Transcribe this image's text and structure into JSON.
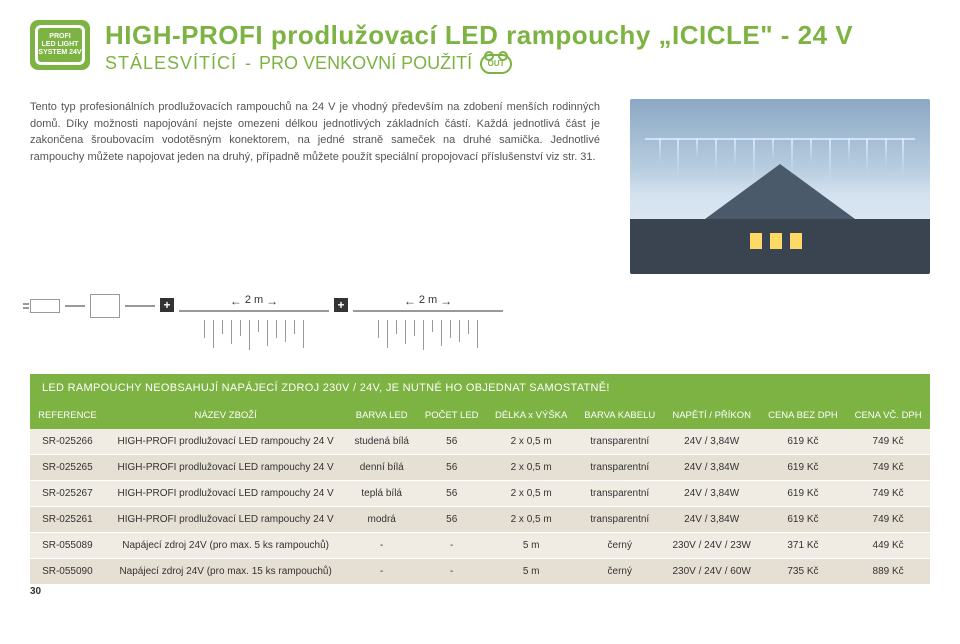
{
  "badge": {
    "line1": "PROFI",
    "line2": "LED LIGHT",
    "line3": "SYSTEM 24V"
  },
  "title": "HIGH-PROFI prodlužovací LED rampouchy „ICICLE\" - 24 V",
  "subtitle_light": "STÁLESVÍTÍCÍ",
  "subtitle_sep": " - ",
  "subtitle_heavy": "PRO VENKOVNÍ POUŽITÍ",
  "out_label": "OUT",
  "body_text": "Tento typ profesionálních prodlužovacích rampouchů na 24 V je vhodný především na zdobení menších rodinných domů. Díky možnosti napojování nejste omezeni délkou jednotlivých základních částí. Každá jednotlivá část je zakončena šroubovacím vodotěsným konektorem, na jedné straně sameček na druhé samička. Jednotlivé rampouchy můžete napojovat jeden na druhý, případně můžete použít speciální propojovací příslušenství viz str. 31.",
  "seg_label": "2 m",
  "notice": "LED RAMPOUCHY NEOBSAHUJÍ NAPÁJECÍ ZDROJ 230V / 24V, JE NUTNÉ HO OBJEDNAT SAMOSTATNĚ!",
  "columns": [
    "REFERENCE",
    "NÁZEV ZBOŽÍ",
    "BARVA LED",
    "POČET LED",
    "DÉLKA x VÝŠKA",
    "BARVA KABELU",
    "NAPĚTÍ / PŘÍKON",
    "CENA BEZ DPH",
    "CENA VČ. DPH"
  ],
  "rows": [
    [
      "SR-025266",
      "HIGH-PROFI prodlužovací LED rampouchy 24 V",
      "studená bílá",
      "56",
      "2 x 0,5 m",
      "transparentní",
      "24V / 3,84W",
      "619 Kč",
      "749 Kč"
    ],
    [
      "SR-025265",
      "HIGH-PROFI prodlužovací LED rampouchy 24 V",
      "denní bílá",
      "56",
      "2 x 0,5 m",
      "transparentní",
      "24V / 3,84W",
      "619 Kč",
      "749 Kč"
    ],
    [
      "SR-025267",
      "HIGH-PROFI prodlužovací LED rampouchy 24 V",
      "teplá bílá",
      "56",
      "2 x 0,5 m",
      "transparentní",
      "24V / 3,84W",
      "619 Kč",
      "749 Kč"
    ],
    [
      "SR-025261",
      "HIGH-PROFI prodlužovací LED rampouchy 24 V",
      "modrá",
      "56",
      "2 x 0,5 m",
      "transparentní",
      "24V / 3,84W",
      "619 Kč",
      "749 Kč"
    ],
    [
      "SR-055089",
      "Napájecí zdroj 24V (pro max. 5 ks rampouchů)",
      "-",
      "-",
      "5 m",
      "černý",
      "230V / 24V / 23W",
      "371 Kč",
      "449 Kč"
    ],
    [
      "SR-055090",
      "Napájecí zdroj 24V (pro max. 15 ks rampouchů)",
      "-",
      "-",
      "5 m",
      "černý",
      "230V / 24V / 60W",
      "735 Kč",
      "889 Kč"
    ]
  ],
  "page_num": "30"
}
